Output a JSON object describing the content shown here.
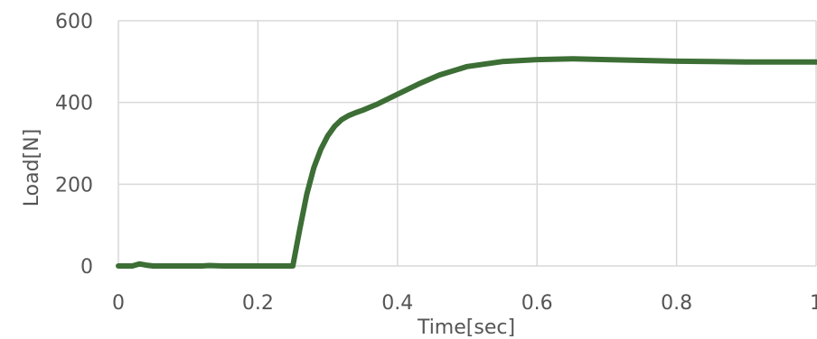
{
  "chart_data": {
    "type": "line",
    "title": "",
    "xlabel": "Time[sec]",
    "ylabel": "Load[N]",
    "xlim": [
      0,
      1
    ],
    "ylim": [
      0,
      600
    ],
    "x_ticks": [
      0,
      0.2,
      0.4,
      0.6,
      0.8,
      1
    ],
    "x_tick_labels": [
      "0",
      "0.2",
      "0.4",
      "0.6",
      "0.8",
      "1"
    ],
    "y_ticks": [
      0,
      200,
      400,
      600
    ],
    "y_tick_labels": [
      "0",
      "200",
      "400",
      "600"
    ],
    "grid": true,
    "legend": "none",
    "colors": {
      "series": "#3c6e35",
      "grid": "#d9d9d9",
      "text": "#555555"
    },
    "series": [
      {
        "x": [
          0,
          0.02,
          0.03,
          0.04,
          0.05,
          0.08,
          0.12,
          0.13,
          0.15,
          0.2,
          0.24,
          0.25,
          0.26,
          0.27,
          0.28,
          0.29,
          0.3,
          0.31,
          0.32,
          0.33,
          0.34,
          0.35,
          0.37,
          0.4,
          0.43,
          0.46,
          0.5,
          0.55,
          0.6,
          0.65,
          0.7,
          0.75,
          0.8,
          0.85,
          0.9,
          0.95,
          1.0
        ],
        "y": [
          0,
          0,
          5,
          2,
          0,
          0,
          0,
          1,
          0,
          0,
          0,
          0,
          90,
          175,
          240,
          285,
          318,
          342,
          358,
          368,
          375,
          381,
          395,
          420,
          445,
          467,
          488,
          500,
          505,
          507,
          505,
          503,
          501,
          500,
          499,
          499,
          499
        ]
      }
    ]
  }
}
